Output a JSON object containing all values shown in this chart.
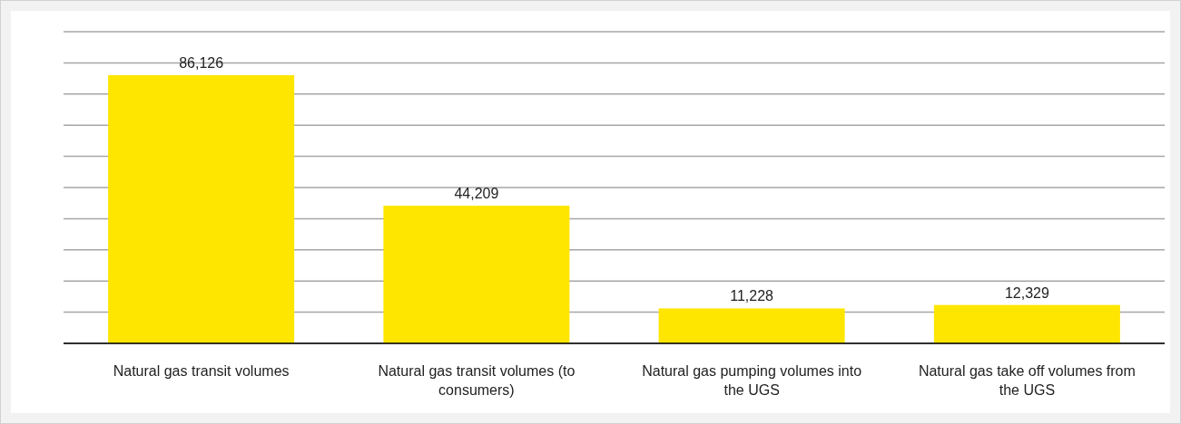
{
  "chart_data": {
    "type": "bar",
    "categories": [
      "Natural gas transit volumes",
      "Natural gas transit volumes (to consumers)",
      "Natural gas pumping volumes into the UGS",
      "Natural gas take off volumes from the UGS"
    ],
    "values": [
      86126,
      44209,
      11228,
      12329
    ],
    "color": "#ffe600",
    "value_labels": [
      "86,126",
      "44,209",
      "11,228",
      "12,329"
    ],
    "grid": "y"
  }
}
